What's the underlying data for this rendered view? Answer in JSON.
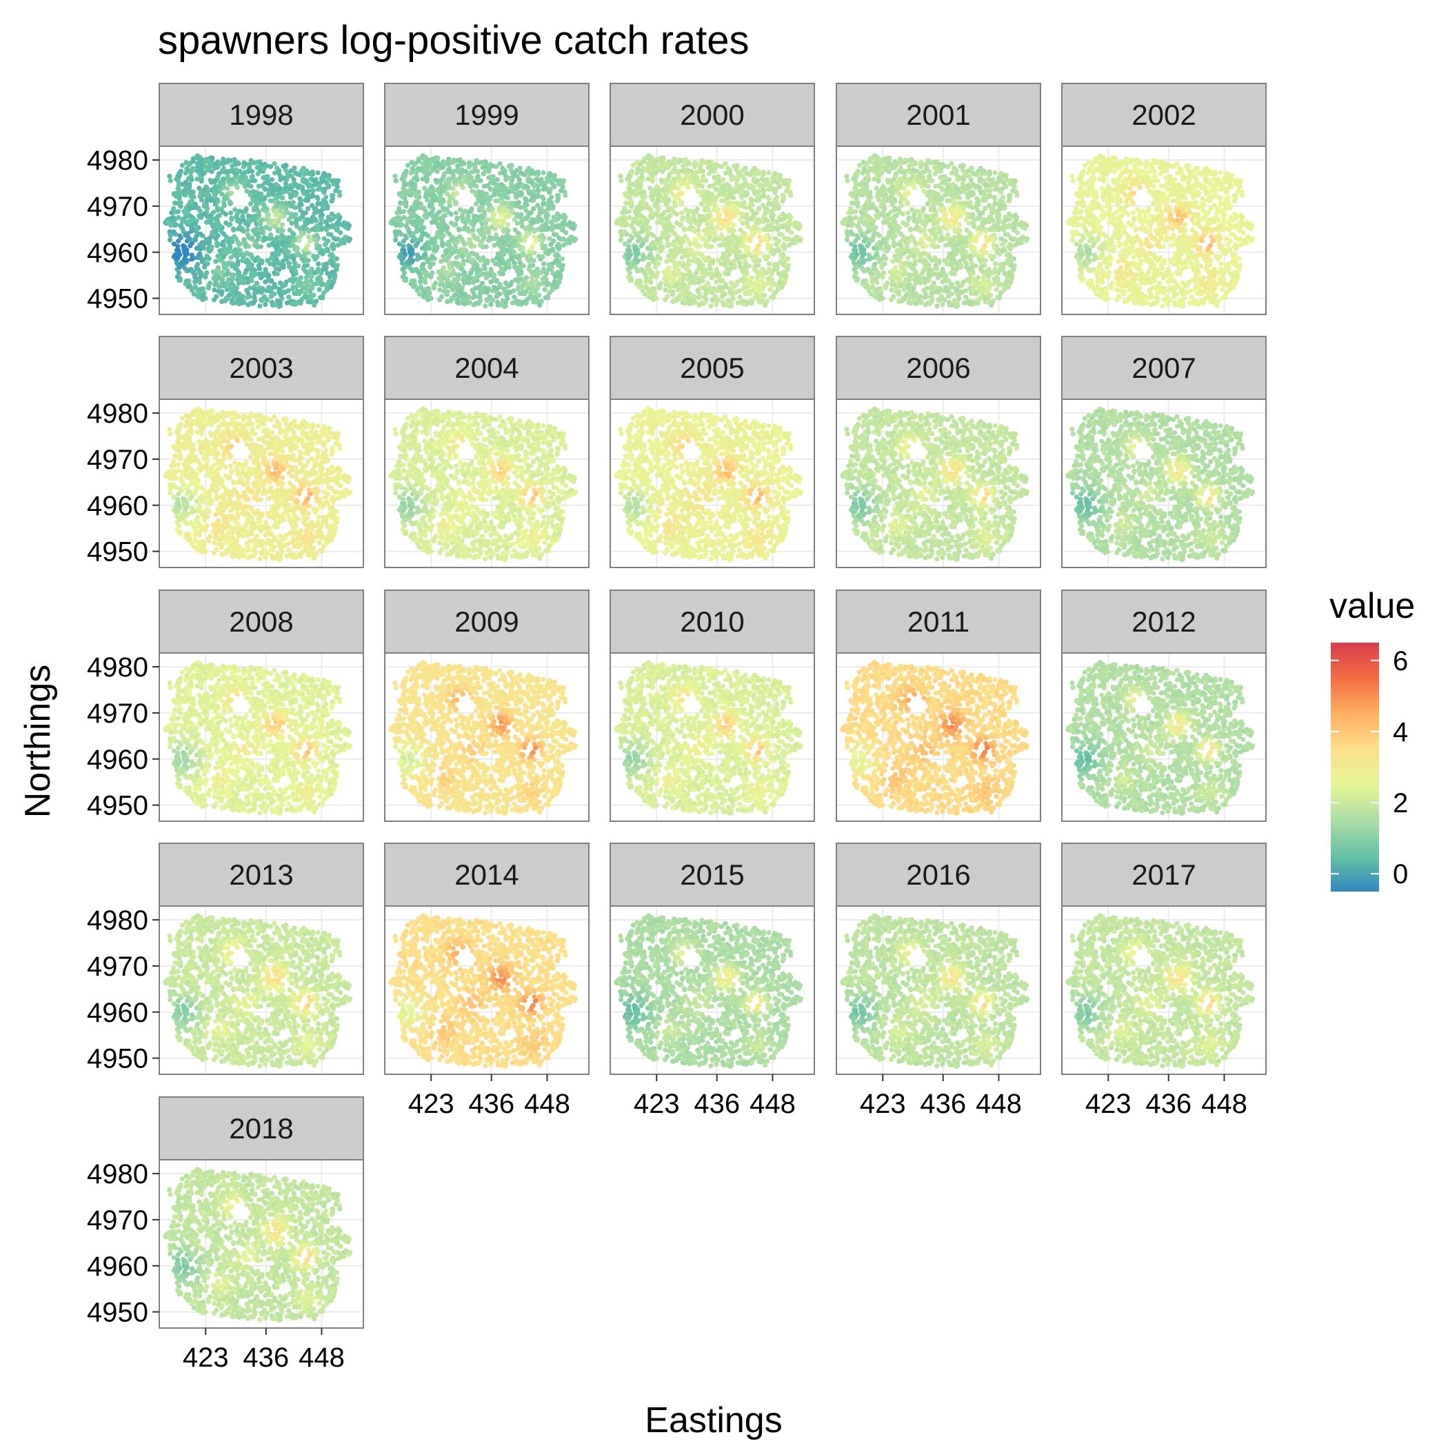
{
  "chart_data": {
    "type": "heatmap",
    "title": "spawners log-positive catch rates",
    "xlabel": "Eastings",
    "ylabel": "Northings",
    "xlim": [
      413,
      457
    ],
    "ylim": [
      4946.5,
      4983
    ],
    "x_ticks": [
      "423",
      "436",
      "448"
    ],
    "y_ticks": [
      "4950",
      "4960",
      "4970",
      "4980"
    ],
    "x_tick_values": [
      423,
      436,
      448
    ],
    "y_tick_values": [
      4950,
      4960,
      4970,
      4980
    ],
    "facet_rows": 5,
    "facet_cols": 5,
    "grid": true,
    "colorbar": {
      "title": "value",
      "range": [
        -0.5,
        6.5
      ],
      "ticks": [
        "0",
        "2",
        "4",
        "6"
      ],
      "tick_values": [
        0,
        2,
        4,
        6
      ],
      "colors": [
        "#3288bd",
        "#66c2a5",
        "#abdda4",
        "#e6f598",
        "#fee08b",
        "#fdae61",
        "#f46d43",
        "#d53e4f"
      ]
    },
    "panels": [
      {
        "label": "1998",
        "mean_value": 1.1
      },
      {
        "label": "1999",
        "mean_value": 1.7
      },
      {
        "label": "2000",
        "mean_value": 2.6
      },
      {
        "label": "2001",
        "mean_value": 2.4
      },
      {
        "label": "2002",
        "mean_value": 3.3
      },
      {
        "label": "2003",
        "mean_value": 3.5
      },
      {
        "label": "2004",
        "mean_value": 3.0
      },
      {
        "label": "2005",
        "mean_value": 3.4
      },
      {
        "label": "2006",
        "mean_value": 2.6
      },
      {
        "label": "2007",
        "mean_value": 2.3
      },
      {
        "label": "2008",
        "mean_value": 3.1
      },
      {
        "label": "2009",
        "mean_value": 4.0
      },
      {
        "label": "2010",
        "mean_value": 3.0
      },
      {
        "label": "2011",
        "mean_value": 4.3
      },
      {
        "label": "2012",
        "mean_value": 2.3
      },
      {
        "label": "2013",
        "mean_value": 2.7
      },
      {
        "label": "2014",
        "mean_value": 4.2
      },
      {
        "label": "2015",
        "mean_value": 2.2
      },
      {
        "label": "2016",
        "mean_value": 2.5
      },
      {
        "label": "2017",
        "mean_value": 2.6
      },
      {
        "label": "2018",
        "mean_value": 2.6
      }
    ]
  }
}
